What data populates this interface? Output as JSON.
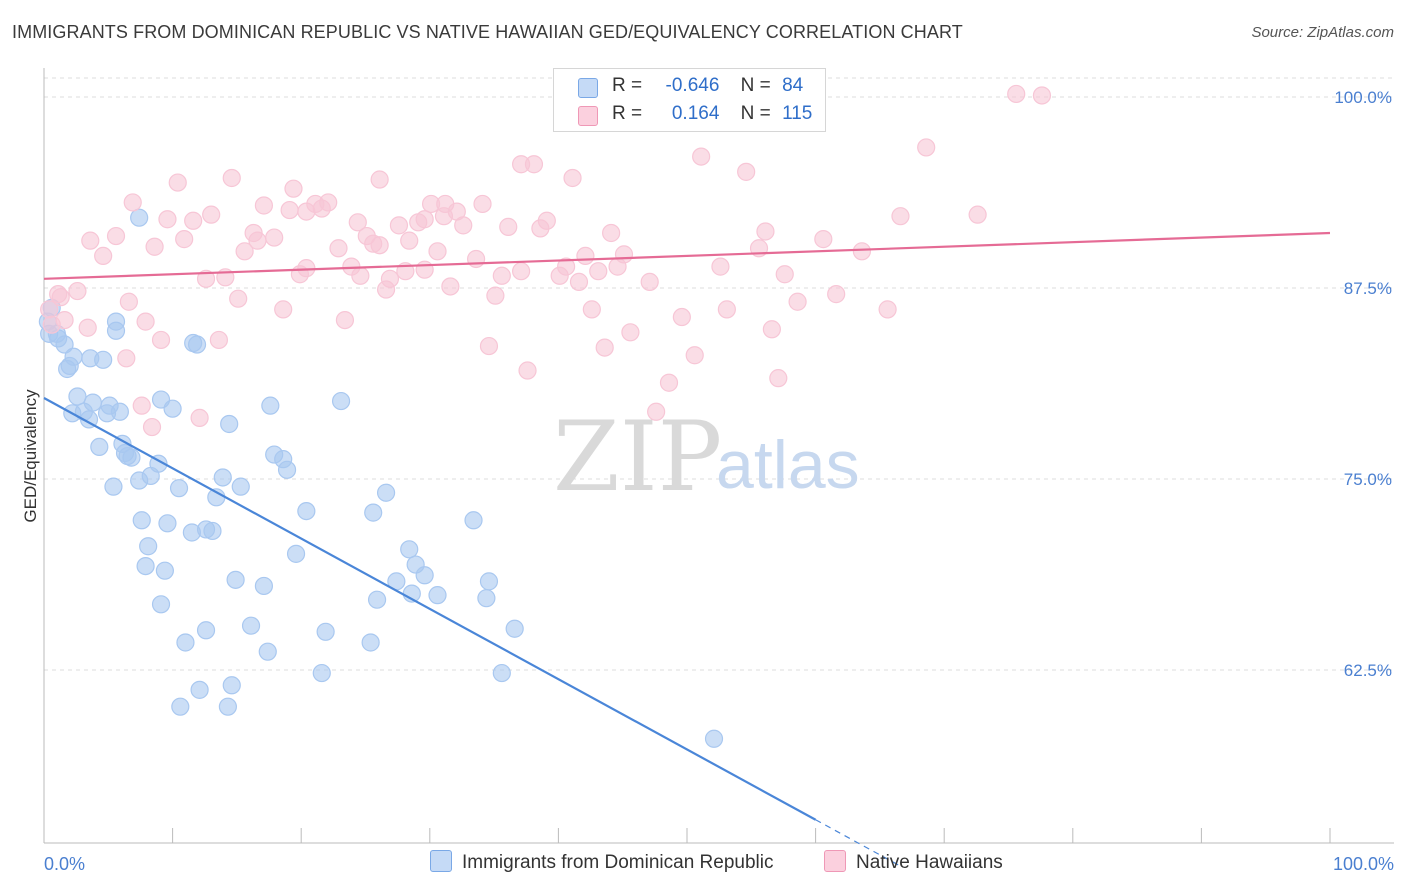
{
  "title": "IMMIGRANTS FROM DOMINICAN REPUBLIC VS NATIVE HAWAIIAN GED/EQUIVALENCY CORRELATION CHART",
  "source": "Source: ZipAtlas.com",
  "watermark": {
    "zip": "ZIP",
    "atlas": "atlas"
  },
  "legend": {
    "rows": [
      {
        "r_label": "R =",
        "r_value": "-0.646",
        "n_label": "N =",
        "n_value": "84",
        "color": "#8ab4ea"
      },
      {
        "r_label": "R =",
        "r_value": "0.164",
        "n_label": "N =",
        "n_value": "115",
        "color": "#f2a3bd"
      }
    ]
  },
  "bottom_legend": [
    {
      "label": "Immigrants from Dominican Republic",
      "color": "#8ab4ea"
    },
    {
      "label": "Native Hawaiians",
      "color": "#f2a3bd"
    }
  ],
  "chart_data": {
    "type": "scatter",
    "title": "IMMIGRANTS FROM DOMINICAN REPUBLIC VS NATIVE HAWAIIAN GED/EQUIVALENCY CORRELATION CHART",
    "xlabel": "",
    "ylabel": "GED/Equivalency",
    "x_tick_labels": [
      "0.0%",
      "100.0%"
    ],
    "y_tick_labels": [
      "100.0%",
      "87.5%",
      "75.0%",
      "62.5%"
    ],
    "y_ticks": [
      100,
      87.5,
      75,
      62.5
    ],
    "xlim": [
      0,
      100
    ],
    "ylim": [
      51,
      102
    ],
    "grid": true,
    "series": [
      {
        "name": "Immigrants from Dominican Republic",
        "color": "#4a86d8",
        "fill": "#a9c8f0",
        "trend": {
          "x0": 0,
          "y0": 80.3,
          "x1": 60,
          "y1": 52.7,
          "dash_to_x": 66.5
        },
        "points": [
          [
            0.3,
            85.3
          ],
          [
            0.6,
            86.2
          ],
          [
            0.4,
            84.5
          ],
          [
            1.1,
            84.2
          ],
          [
            1.6,
            83.8
          ],
          [
            1.8,
            82.2
          ],
          [
            2.0,
            82.4
          ],
          [
            2.2,
            79.3
          ],
          [
            2.6,
            80.4
          ],
          [
            3.1,
            79.4
          ],
          [
            3.5,
            78.9
          ],
          [
            3.8,
            80.0
          ],
          [
            4.6,
            82.8
          ],
          [
            4.9,
            79.3
          ],
          [
            5.1,
            79.8
          ],
          [
            5.6,
            84.7
          ],
          [
            5.9,
            79.4
          ],
          [
            6.1,
            77.3
          ],
          [
            6.3,
            76.7
          ],
          [
            4.3,
            77.1
          ],
          [
            6.8,
            76.4
          ],
          [
            7.4,
            74.9
          ],
          [
            8.3,
            75.2
          ],
          [
            8.9,
            76.0
          ],
          [
            9.1,
            80.2
          ],
          [
            10.0,
            79.6
          ],
          [
            10.5,
            74.4
          ],
          [
            11.5,
            71.5
          ],
          [
            3.6,
            82.9
          ],
          [
            5.4,
            74.5
          ],
          [
            7.6,
            72.3
          ],
          [
            8.1,
            70.6
          ],
          [
            9.6,
            72.1
          ],
          [
            11.9,
            83.8
          ],
          [
            12.6,
            71.7
          ],
          [
            13.1,
            71.6
          ],
          [
            13.4,
            73.8
          ],
          [
            13.9,
            75.1
          ],
          [
            14.4,
            78.6
          ],
          [
            14.9,
            68.4
          ],
          [
            15.3,
            74.5
          ],
          [
            17.1,
            68.0
          ],
          [
            17.4,
            63.7
          ],
          [
            17.6,
            79.8
          ],
          [
            17.9,
            76.6
          ],
          [
            18.6,
            76.3
          ],
          [
            18.9,
            75.6
          ],
          [
            19.6,
            70.1
          ],
          [
            20.4,
            72.9
          ],
          [
            21.6,
            62.3
          ],
          [
            21.9,
            65.0
          ],
          [
            23.1,
            80.1
          ],
          [
            25.6,
            72.8
          ],
          [
            25.9,
            67.1
          ],
          [
            25.4,
            64.3
          ],
          [
            26.6,
            74.1
          ],
          [
            27.4,
            68.3
          ],
          [
            28.4,
            70.4
          ],
          [
            28.9,
            69.4
          ],
          [
            28.6,
            67.5
          ],
          [
            29.6,
            68.7
          ],
          [
            30.6,
            67.4
          ],
          [
            33.4,
            72.3
          ],
          [
            34.6,
            68.3
          ],
          [
            34.4,
            67.2
          ],
          [
            35.6,
            62.3
          ],
          [
            9.1,
            66.8
          ],
          [
            9.4,
            69.0
          ],
          [
            10.6,
            60.1
          ],
          [
            11.0,
            64.3
          ],
          [
            12.1,
            61.2
          ],
          [
            12.6,
            65.1
          ],
          [
            14.3,
            60.1
          ],
          [
            14.6,
            61.5
          ],
          [
            16.1,
            65.4
          ],
          [
            36.6,
            65.2
          ],
          [
            52.1,
            58.0
          ],
          [
            7.9,
            69.3
          ],
          [
            7.4,
            92.1
          ],
          [
            5.6,
            85.3
          ],
          [
            11.6,
            83.9
          ],
          [
            1.0,
            84.5
          ],
          [
            6.5,
            76.5
          ],
          [
            2.3,
            83.0
          ]
        ]
      },
      {
        "name": "Native Hawaiians",
        "color": "#e56b95",
        "fill": "#f7c6d6",
        "trend": {
          "x0": 0,
          "y0": 88.1,
          "x1": 100,
          "y1": 91.1
        },
        "points": [
          [
            0.4,
            86.1
          ],
          [
            0.6,
            85.1
          ],
          [
            1.1,
            87.1
          ],
          [
            1.3,
            86.9
          ],
          [
            1.6,
            85.4
          ],
          [
            2.6,
            87.3
          ],
          [
            3.4,
            84.9
          ],
          [
            3.6,
            90.6
          ],
          [
            4.6,
            89.6
          ],
          [
            5.6,
            90.9
          ],
          [
            6.6,
            86.6
          ],
          [
            6.9,
            93.1
          ],
          [
            7.9,
            85.3
          ],
          [
            8.6,
            90.2
          ],
          [
            8.4,
            78.4
          ],
          [
            9.1,
            84.1
          ],
          [
            9.6,
            92.0
          ],
          [
            10.4,
            94.4
          ],
          [
            10.9,
            90.7
          ],
          [
            11.6,
            91.9
          ],
          [
            12.1,
            79.0
          ],
          [
            12.6,
            88.1
          ],
          [
            13.0,
            92.3
          ],
          [
            13.6,
            84.1
          ],
          [
            14.1,
            88.2
          ],
          [
            14.6,
            94.7
          ],
          [
            15.1,
            86.8
          ],
          [
            15.6,
            89.9
          ],
          [
            16.3,
            91.1
          ],
          [
            16.6,
            90.6
          ],
          [
            17.1,
            92.9
          ],
          [
            17.9,
            90.8
          ],
          [
            18.6,
            86.1
          ],
          [
            19.1,
            92.6
          ],
          [
            19.4,
            94.0
          ],
          [
            19.9,
            88.4
          ],
          [
            20.4,
            88.8
          ],
          [
            21.1,
            93.0
          ],
          [
            21.6,
            92.7
          ],
          [
            22.1,
            93.1
          ],
          [
            22.9,
            90.1
          ],
          [
            23.4,
            85.4
          ],
          [
            23.9,
            88.9
          ],
          [
            24.4,
            91.8
          ],
          [
            24.6,
            88.3
          ],
          [
            25.1,
            90.9
          ],
          [
            25.6,
            90.4
          ],
          [
            26.1,
            90.3
          ],
          [
            26.6,
            87.4
          ],
          [
            26.9,
            88.1
          ],
          [
            27.6,
            91.6
          ],
          [
            28.1,
            88.6
          ],
          [
            28.4,
            90.6
          ],
          [
            29.1,
            91.8
          ],
          [
            29.6,
            88.7
          ],
          [
            30.1,
            93.0
          ],
          [
            30.6,
            89.9
          ],
          [
            31.1,
            92.2
          ],
          [
            31.6,
            87.6
          ],
          [
            32.1,
            92.5
          ],
          [
            32.6,
            91.6
          ],
          [
            33.6,
            89.4
          ],
          [
            34.1,
            93.0
          ],
          [
            34.6,
            83.7
          ],
          [
            35.1,
            87.0
          ],
          [
            35.6,
            88.3
          ],
          [
            36.1,
            91.5
          ],
          [
            37.1,
            88.6
          ],
          [
            37.6,
            82.1
          ],
          [
            38.1,
            95.6
          ],
          [
            38.6,
            91.4
          ],
          [
            39.1,
            91.9
          ],
          [
            40.1,
            88.3
          ],
          [
            40.6,
            88.9
          ],
          [
            41.1,
            94.7
          ],
          [
            41.6,
            87.9
          ],
          [
            42.1,
            89.6
          ],
          [
            42.6,
            86.1
          ],
          [
            43.1,
            88.6
          ],
          [
            43.6,
            83.6
          ],
          [
            44.1,
            91.1
          ],
          [
            44.6,
            88.9
          ],
          [
            45.1,
            89.7
          ],
          [
            45.6,
            84.6
          ],
          [
            47.1,
            87.9
          ],
          [
            47.6,
            79.4
          ],
          [
            48.6,
            81.3
          ],
          [
            49.6,
            85.6
          ],
          [
            50.6,
            83.1
          ],
          [
            51.1,
            96.1
          ],
          [
            52.6,
            88.9
          ],
          [
            53.1,
            86.1
          ],
          [
            54.6,
            95.1
          ],
          [
            55.6,
            90.1
          ],
          [
            56.1,
            91.2
          ],
          [
            56.6,
            84.8
          ],
          [
            57.1,
            81.6
          ],
          [
            57.6,
            88.4
          ],
          [
            58.6,
            86.6
          ],
          [
            60.6,
            90.7
          ],
          [
            61.6,
            87.1
          ],
          [
            63.6,
            89.9
          ],
          [
            65.6,
            86.1
          ],
          [
            66.6,
            92.2
          ],
          [
            68.6,
            96.7
          ],
          [
            72.6,
            92.3
          ],
          [
            75.6,
            100.2
          ],
          [
            77.6,
            100.1
          ],
          [
            37.1,
            95.6
          ],
          [
            29.6,
            92.0
          ],
          [
            26.1,
            94.6
          ],
          [
            20.4,
            92.5
          ],
          [
            31.2,
            93.0
          ],
          [
            6.4,
            82.9
          ],
          [
            7.6,
            79.8
          ]
        ]
      }
    ]
  }
}
